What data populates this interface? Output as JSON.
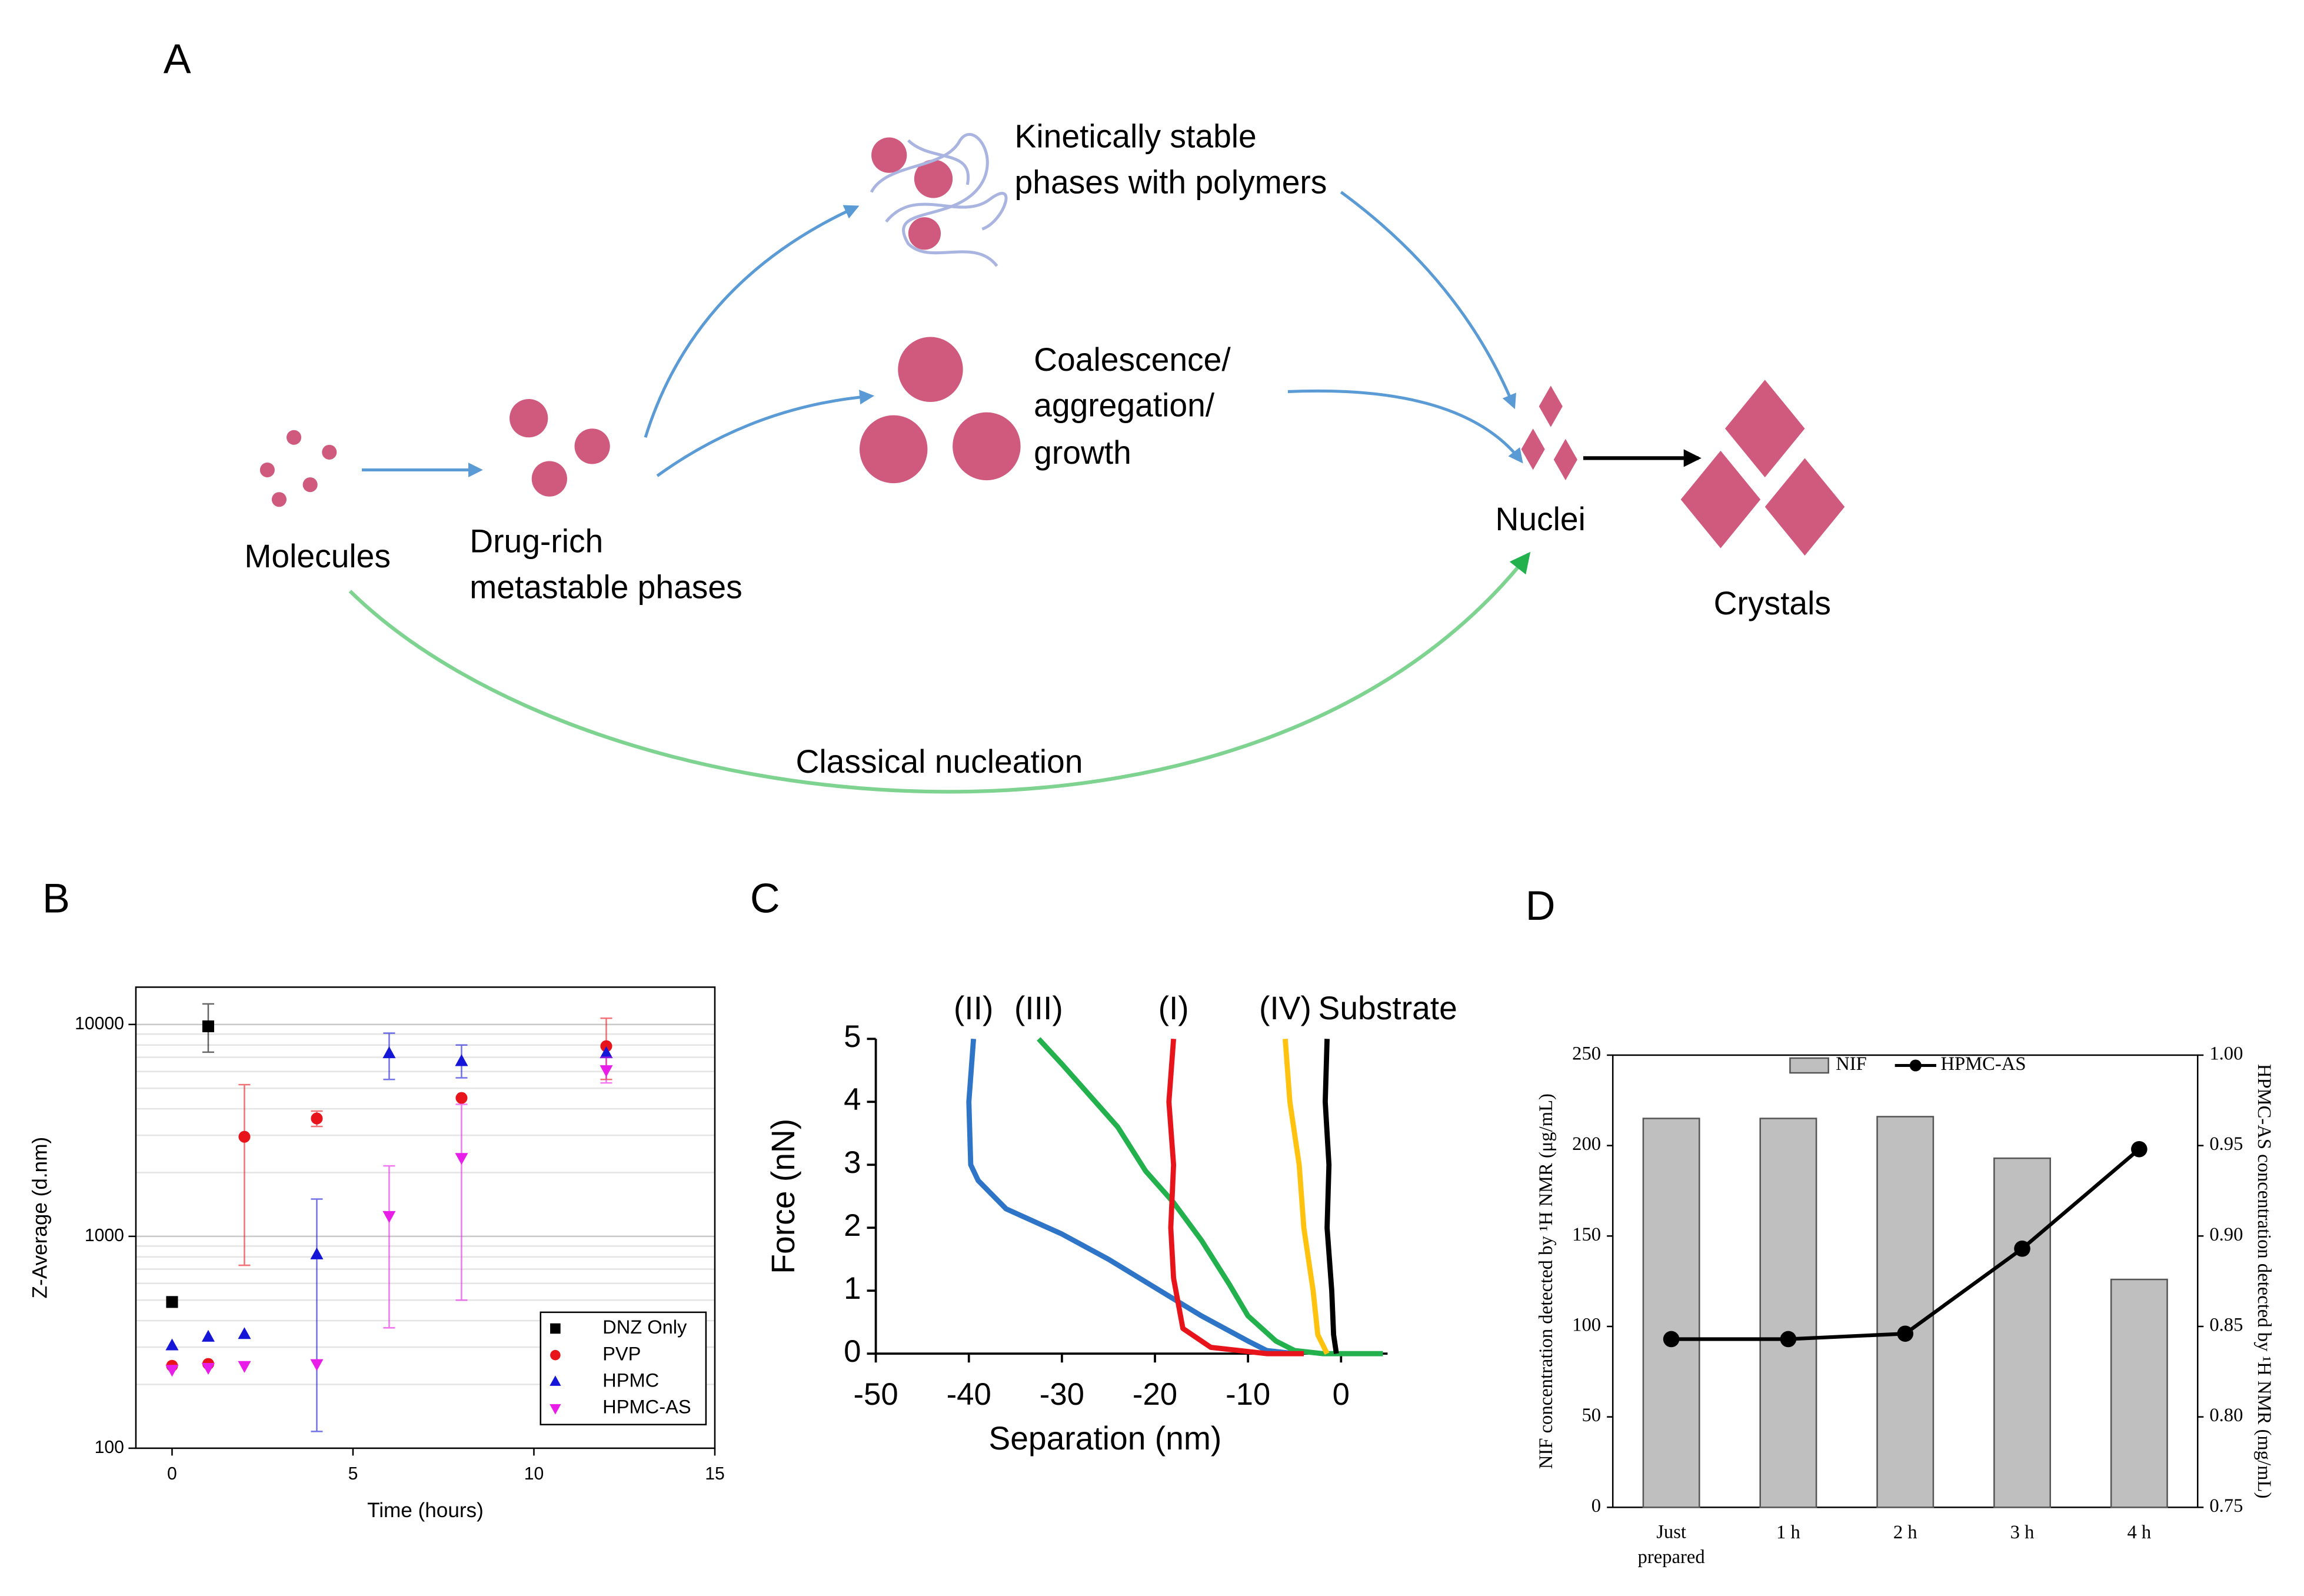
{
  "diagram": {
    "label": "A",
    "nodes": [
      {
        "lines": [
          "Molecules"
        ]
      },
      {
        "lines": [
          "Drug-rich",
          "metastable phases"
        ]
      },
      {
        "lines": [
          "Kinetically stable",
          "phases with polymers"
        ]
      },
      {
        "lines": [
          "Coalescence/",
          "aggregation/",
          "growth"
        ]
      },
      {
        "lines": [
          "Nuclei"
        ]
      },
      {
        "lines": [
          "Crystals"
        ]
      }
    ],
    "edges": [
      {
        "label": "Classical nucleation"
      }
    ]
  },
  "chart_data": [
    {
      "type": "scatter",
      "label": "B",
      "x_label": "Time (hours)",
      "y_label": "Z-Average (d.nm)",
      "x": [
        0,
        1,
        2,
        4,
        6,
        8,
        12
      ],
      "xlim": [
        -1,
        15
      ],
      "xticks": [
        0,
        5,
        10,
        15
      ],
      "ylim": [
        100,
        15000
      ],
      "yticks": [
        100,
        1000,
        10000
      ],
      "y_scale": "log",
      "grid": true,
      "legend": "lower right",
      "series": [
        {
          "name": "DNZ Only",
          "color": "#000000",
          "marker": "square",
          "values": [
            490,
            9800,
            null,
            null,
            null,
            null,
            null
          ],
          "error_low": [
            null,
            7400,
            null,
            null,
            null,
            null,
            null
          ],
          "error_high": [
            null,
            12500,
            null,
            null,
            null,
            null,
            null
          ]
        },
        {
          "name": "PVP",
          "color": "#e8141b",
          "marker": "circle",
          "values": [
            245,
            250,
            2950,
            3600,
            null,
            4500,
            7900
          ],
          "error_low": [
            null,
            null,
            730,
            3300,
            null,
            null,
            5500
          ],
          "error_high": [
            null,
            null,
            5200,
            3900,
            null,
            null,
            10700
          ]
        },
        {
          "name": "HPMC",
          "color": "#1616d8",
          "marker": "triangle-up",
          "values": [
            305,
            335,
            345,
            820,
            7300,
            6700,
            7300
          ],
          "error_low": [
            null,
            null,
            null,
            120,
            5500,
            5600,
            null
          ],
          "error_high": [
            null,
            null,
            null,
            1500,
            9100,
            8000,
            null
          ]
        },
        {
          "name": "HPMC-AS",
          "color": "#e81ee8",
          "marker": "triangle-down",
          "values": [
            235,
            240,
            245,
            250,
            1250,
            2350,
            6100
          ],
          "error_low": [
            null,
            null,
            null,
            null,
            370,
            500,
            5300
          ],
          "error_high": [
            null,
            null,
            null,
            null,
            2150,
            4200,
            7000
          ]
        }
      ]
    },
    {
      "type": "line",
      "label": "C",
      "x_label": "Separation (nm)",
      "y_label": "Force (nN)",
      "xlim": [
        -50,
        5
      ],
      "xticks": [
        -50,
        -40,
        -30,
        -20,
        -10,
        0
      ],
      "ylim": [
        0,
        5
      ],
      "yticks": [
        0,
        1,
        2,
        3,
        4,
        5
      ],
      "series": [
        {
          "name": "(II)",
          "color": "#2e75c7",
          "x": [
            -39.5,
            -40,
            -39.8,
            -39,
            -36,
            -30,
            -25,
            -20,
            -15,
            -10,
            -8,
            -5
          ],
          "values": [
            5,
            4,
            3,
            2.75,
            2.3,
            1.9,
            1.5,
            1.05,
            0.6,
            0.2,
            0.05,
            0
          ]
        },
        {
          "name": "(III)",
          "color": "#22b14c",
          "x": [
            -32.5,
            -30,
            -27,
            -24,
            -21,
            -18,
            -15,
            -12,
            -10,
            -7,
            -5,
            -2,
            4.5
          ],
          "values": [
            5,
            4.6,
            4.1,
            3.6,
            2.9,
            2.4,
            1.8,
            1.1,
            0.6,
            0.2,
            0.05,
            0,
            0
          ]
        },
        {
          "name": "(I)",
          "color": "#e8141b",
          "x": [
            -18,
            -18.5,
            -18,
            -18.3,
            -18,
            -17,
            -14,
            -8,
            -4
          ],
          "values": [
            5,
            4,
            3,
            2,
            1.2,
            0.4,
            0.1,
            0,
            0
          ]
        },
        {
          "name": "(IV)",
          "color": "#ffc20e",
          "x": [
            -6,
            -5.5,
            -4.5,
            -4,
            -3,
            -2.5,
            -1.5
          ],
          "values": [
            5,
            4,
            3,
            2,
            1,
            0.3,
            0
          ]
        },
        {
          "name": "Substrate",
          "color": "#000000",
          "x": [
            -1.5,
            -1.7,
            -1.3,
            -1.5,
            -1,
            -0.8,
            -0.5
          ],
          "values": [
            5,
            4,
            3,
            2,
            1,
            0.3,
            0
          ]
        }
      ]
    },
    {
      "type": "bar",
      "label": "D",
      "categories": [
        "Just prepared",
        "1 h",
        "2 h",
        "3 h",
        "4 h"
      ],
      "y_label": "NIF concentration  detected by ¹H NMR (μg/mL)",
      "y2_label": "HPMC-AS concentration  detected by ¹H NMR (mg/mL)",
      "ylim": [
        0,
        250
      ],
      "yticks": [
        0,
        50,
        100,
        150,
        200,
        250
      ],
      "y2lim": [
        0.75,
        1.0
      ],
      "y2ticks": [
        0.75,
        {
          "value": 0.8,
          "label": "0.80"
        },
        0.85,
        {
          "value": 0.9,
          "label": "0.90"
        },
        0.95,
        {
          "value": 1.0,
          "label": "1.00"
        }
      ],
      "legend": "upper center",
      "series": [
        {
          "name": "NIF",
          "color": "#bfbfbf",
          "values": [
            215,
            215,
            216,
            193,
            126
          ]
        },
        {
          "name": "HPMC-AS",
          "color": "#000000",
          "axis": "y2",
          "values": [
            0.843,
            0.843,
            0.846,
            0.893,
            0.948
          ]
        }
      ]
    }
  ]
}
